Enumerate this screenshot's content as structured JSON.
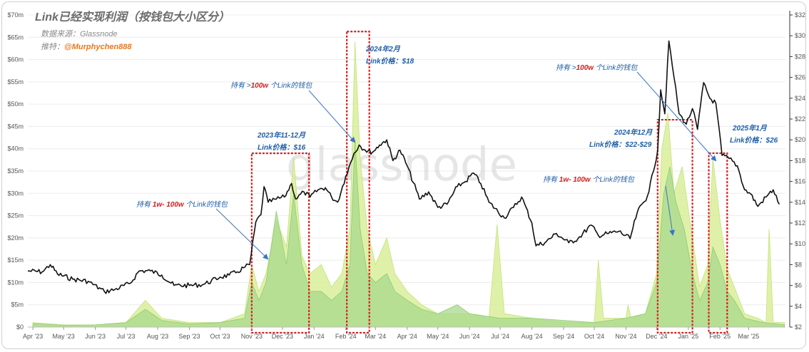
{
  "header": {
    "title": "Link已经实现利润（按钱包大小区分）",
    "source": "数据来源：Glassnode",
    "author_prefix": "推特：",
    "author_handle": "@Murphychen888"
  },
  "watermark": "glassnode",
  "annotations": {
    "a_1w_100w_left": {
      "p1": "持有 ",
      "b": "1w- 100w",
      "p2": " 个Link的钱包"
    },
    "a_100w_left": {
      "p1": "持有 >",
      "b": "100w",
      "p2": " 个Link的钱包"
    },
    "a_2023": {
      "date": "2023年11-12月",
      "price": "Link价格：$16"
    },
    "a_2024feb": {
      "date": "2024年2月",
      "price": "Link价格：$18"
    },
    "a_100w_right": {
      "p1": "持有 >",
      "b": "100w",
      "p2": " 个Link的钱包"
    },
    "a_2024dec": {
      "date": "2024年12月",
      "price": "Link价格：$22-$29"
    },
    "a_1w_100w_right": {
      "p1": "持有 ",
      "b": "1w- 100w",
      "p2": " 个Link的钱包"
    },
    "a_2025jan": {
      "date": "2025年1月",
      "price": "Link价格：$26"
    }
  },
  "colors": {
    "price_line": "#111111",
    "profit_1w_100w": "#a8d88e",
    "profit_100w": "#d9ef9a",
    "highlight_box": "#d42020",
    "annotation": "#1f5fa8"
  },
  "chart_data": {
    "type": "area",
    "x_ticks": [
      "Apr '23",
      "May '23",
      "Jun '23",
      "Jul '23",
      "Aug '23",
      "Sep '23",
      "Oct '23",
      "Nov '23",
      "Dec '23",
      "Jan '24",
      "Feb '24",
      "Mar '24",
      "Apr '24",
      "May '24",
      "Jun '24",
      "Jul '24",
      "Aug '24",
      "Sep '24",
      "Oct '24",
      "Nov '24",
      "Dec '24",
      "Jan '25",
      "Feb '25",
      "Mar '25"
    ],
    "x_range": [
      "2023-03-27",
      "2025-04-06"
    ],
    "y_left": {
      "label": "",
      "ticks": [
        "$0",
        "$5m",
        "$10m",
        "$15m",
        "$20m",
        "$25m",
        "$30m",
        "$35m",
        "$40m",
        "$45m",
        "$50m",
        "$55m",
        "$60m",
        "$65m",
        "$70m"
      ],
      "range": [
        0,
        70
      ]
    },
    "y_right": {
      "label": "",
      "ticks": [
        "$2",
        "$4",
        "$6",
        "$8",
        "$10",
        "$12",
        "$14",
        "$16",
        "$18",
        "$20",
        "$22",
        "$24",
        "$26",
        "$28",
        "$30",
        "$32"
      ],
      "range": [
        2,
        32
      ]
    },
    "series": [
      {
        "name": "持有 >100w 个Link的钱包",
        "type": "area",
        "axis": "left",
        "points": [
          [
            "2023-04-01",
            1
          ],
          [
            "2023-05-01",
            0.5
          ],
          [
            "2023-06-01",
            0.5
          ],
          [
            "2023-07-01",
            1
          ],
          [
            "2023-07-20",
            6
          ],
          [
            "2023-08-05",
            2
          ],
          [
            "2023-09-01",
            1
          ],
          [
            "2023-10-01",
            1
          ],
          [
            "2023-10-25",
            3
          ],
          [
            "2023-11-01",
            14
          ],
          [
            "2023-11-08",
            8
          ],
          [
            "2023-11-15",
            12
          ],
          [
            "2023-11-25",
            24
          ],
          [
            "2023-12-05",
            18
          ],
          [
            "2023-12-12",
            38
          ],
          [
            "2023-12-20",
            16
          ],
          [
            "2023-12-28",
            12
          ],
          [
            "2024-01-08",
            14
          ],
          [
            "2024-01-18",
            9
          ],
          [
            "2024-01-28",
            12
          ],
          [
            "2024-02-05",
            22
          ],
          [
            "2024-02-10",
            64
          ],
          [
            "2024-02-15",
            38
          ],
          [
            "2024-02-22",
            22
          ],
          [
            "2024-03-01",
            14
          ],
          [
            "2024-03-12",
            20
          ],
          [
            "2024-03-20",
            12
          ],
          [
            "2024-04-01",
            8
          ],
          [
            "2024-04-15",
            5
          ],
          [
            "2024-05-01",
            3
          ],
          [
            "2024-06-01",
            3
          ],
          [
            "2024-06-20",
            2
          ],
          [
            "2024-06-28",
            23
          ],
          [
            "2024-07-05",
            3
          ],
          [
            "2024-08-01",
            2
          ],
          [
            "2024-09-01",
            1
          ],
          [
            "2024-10-01",
            1
          ],
          [
            "2024-10-05",
            15
          ],
          [
            "2024-10-10",
            2
          ],
          [
            "2024-11-01",
            2
          ],
          [
            "2024-11-03",
            5
          ],
          [
            "2024-11-06",
            2
          ],
          [
            "2024-11-20",
            3
          ],
          [
            "2024-12-01",
            12
          ],
          [
            "2024-12-06",
            40
          ],
          [
            "2024-12-12",
            48
          ],
          [
            "2024-12-18",
            30
          ],
          [
            "2024-12-26",
            36
          ],
          [
            "2025-01-05",
            20
          ],
          [
            "2025-01-12",
            9
          ],
          [
            "2025-01-20",
            14
          ],
          [
            "2025-01-25",
            38
          ],
          [
            "2025-02-01",
            24
          ],
          [
            "2025-02-08",
            13
          ],
          [
            "2025-02-15",
            9
          ],
          [
            "2025-02-25",
            3
          ],
          [
            "2025-03-10",
            2
          ],
          [
            "2025-03-18",
            1
          ],
          [
            "2025-03-21",
            22
          ],
          [
            "2025-03-25",
            1
          ],
          [
            "2025-04-05",
            1
          ]
        ]
      },
      {
        "name": "持有 1w- 100w 个Link的钱包",
        "type": "area",
        "axis": "left",
        "points": [
          [
            "2023-04-01",
            0.8
          ],
          [
            "2023-05-01",
            0.4
          ],
          [
            "2023-06-01",
            0.5
          ],
          [
            "2023-07-01",
            1
          ],
          [
            "2023-07-20",
            4
          ],
          [
            "2023-08-05",
            1.5
          ],
          [
            "2023-09-01",
            0.7
          ],
          [
            "2023-10-01",
            1
          ],
          [
            "2023-10-25",
            2
          ],
          [
            "2023-11-01",
            10
          ],
          [
            "2023-11-08",
            6
          ],
          [
            "2023-11-15",
            10
          ],
          [
            "2023-11-25",
            26
          ],
          [
            "2023-12-05",
            14
          ],
          [
            "2023-12-12",
            30
          ],
          [
            "2023-12-20",
            14
          ],
          [
            "2023-12-28",
            8
          ],
          [
            "2024-01-08",
            8
          ],
          [
            "2024-01-18",
            6
          ],
          [
            "2024-01-28",
            8
          ],
          [
            "2024-02-05",
            14
          ],
          [
            "2024-02-10",
            42
          ],
          [
            "2024-02-15",
            22
          ],
          [
            "2024-02-22",
            12
          ],
          [
            "2024-03-01",
            10
          ],
          [
            "2024-03-12",
            12
          ],
          [
            "2024-03-20",
            8
          ],
          [
            "2024-04-01",
            6
          ],
          [
            "2024-04-15",
            4
          ],
          [
            "2024-05-01",
            3
          ],
          [
            "2024-05-20",
            5
          ],
          [
            "2024-06-01",
            3
          ],
          [
            "2024-07-01",
            2
          ],
          [
            "2024-08-01",
            2
          ],
          [
            "2024-09-01",
            1.5
          ],
          [
            "2024-10-01",
            1
          ],
          [
            "2024-11-01",
            2
          ],
          [
            "2024-11-20",
            3
          ],
          [
            "2024-12-01",
            10
          ],
          [
            "2024-12-08",
            30
          ],
          [
            "2024-12-14",
            36
          ],
          [
            "2024-12-20",
            28
          ],
          [
            "2024-12-28",
            22
          ],
          [
            "2025-01-05",
            12
          ],
          [
            "2025-01-12",
            6
          ],
          [
            "2025-01-20",
            10
          ],
          [
            "2025-01-25",
            18
          ],
          [
            "2025-02-01",
            14
          ],
          [
            "2025-02-08",
            8
          ],
          [
            "2025-02-15",
            6
          ],
          [
            "2025-02-25",
            2
          ],
          [
            "2025-03-15",
            1
          ],
          [
            "2025-04-05",
            0.5
          ]
        ]
      },
      {
        "name": "Link价格",
        "type": "line",
        "axis": "right",
        "points": [
          [
            "2023-03-27",
            7.4
          ],
          [
            "2023-04-10",
            7.3
          ],
          [
            "2023-04-18",
            8.0
          ],
          [
            "2023-04-25",
            7.1
          ],
          [
            "2023-05-10",
            6.6
          ],
          [
            "2023-05-25",
            6.4
          ],
          [
            "2023-06-10",
            5.4
          ],
          [
            "2023-06-20",
            5.6
          ],
          [
            "2023-07-05",
            6.2
          ],
          [
            "2023-07-14",
            7.4
          ],
          [
            "2023-07-25",
            7.4
          ],
          [
            "2023-08-05",
            7.0
          ],
          [
            "2023-08-17",
            6.0
          ],
          [
            "2023-09-01",
            6.0
          ],
          [
            "2023-09-15",
            6.1
          ],
          [
            "2023-10-01",
            6.8
          ],
          [
            "2023-10-10",
            7.0
          ],
          [
            "2023-10-18",
            7.3
          ],
          [
            "2023-10-24",
            7.7
          ],
          [
            "2023-10-30",
            8.0
          ],
          [
            "2023-11-05",
            12.1
          ],
          [
            "2023-11-10",
            12.8
          ],
          [
            "2023-11-13",
            15.5
          ],
          [
            "2023-11-17",
            14.0
          ],
          [
            "2023-11-25",
            14.3
          ],
          [
            "2023-12-03",
            14.5
          ],
          [
            "2023-12-10",
            15.8
          ],
          [
            "2023-12-14",
            14.3
          ],
          [
            "2023-12-22",
            15.0
          ],
          [
            "2023-12-28",
            14.5
          ],
          [
            "2024-01-05",
            15.2
          ],
          [
            "2024-01-12",
            15.4
          ],
          [
            "2024-01-18",
            14.5
          ],
          [
            "2024-01-24",
            14.0
          ],
          [
            "2024-02-01",
            16.5
          ],
          [
            "2024-02-09",
            18.7
          ],
          [
            "2024-02-14",
            19.5
          ],
          [
            "2024-02-20",
            19.0
          ],
          [
            "2024-02-27",
            18.8
          ],
          [
            "2024-03-05",
            19.5
          ],
          [
            "2024-03-12",
            20.0
          ],
          [
            "2024-03-18",
            18.0
          ],
          [
            "2024-03-25",
            19.0
          ],
          [
            "2024-04-01",
            17.5
          ],
          [
            "2024-04-13",
            14.3
          ],
          [
            "2024-04-22",
            15.0
          ],
          [
            "2024-05-01",
            13.5
          ],
          [
            "2024-05-10",
            13.8
          ],
          [
            "2024-05-20",
            15.5
          ],
          [
            "2024-05-28",
            16.0
          ],
          [
            "2024-06-05",
            16.8
          ],
          [
            "2024-06-12",
            15.8
          ],
          [
            "2024-06-20",
            14.0
          ],
          [
            "2024-07-05",
            12.5
          ],
          [
            "2024-07-14",
            13.5
          ],
          [
            "2024-07-22",
            14.5
          ],
          [
            "2024-08-01",
            12.0
          ],
          [
            "2024-08-05",
            9.8
          ],
          [
            "2024-08-15",
            10.2
          ],
          [
            "2024-08-25",
            11.0
          ],
          [
            "2024-09-06",
            10.1
          ],
          [
            "2024-09-15",
            10.5
          ],
          [
            "2024-09-28",
            11.8
          ],
          [
            "2024-10-05",
            10.8
          ],
          [
            "2024-10-15",
            11.0
          ],
          [
            "2024-10-25",
            11.2
          ],
          [
            "2024-11-05",
            10.5
          ],
          [
            "2024-11-12",
            13.0
          ],
          [
            "2024-11-22",
            14.6
          ],
          [
            "2024-11-28",
            17.0
          ],
          [
            "2024-12-02",
            19.0
          ],
          [
            "2024-12-05",
            24.8
          ],
          [
            "2024-12-09",
            22.5
          ],
          [
            "2024-12-13",
            29.5
          ],
          [
            "2024-12-18",
            26.0
          ],
          [
            "2024-12-23",
            22.5
          ],
          [
            "2024-12-30",
            21.5
          ],
          [
            "2025-01-05",
            23.0
          ],
          [
            "2025-01-10",
            21.0
          ],
          [
            "2025-01-16",
            25.5
          ],
          [
            "2025-01-22",
            24.0
          ],
          [
            "2025-01-28",
            23.5
          ],
          [
            "2025-02-03",
            18.5
          ],
          [
            "2025-02-10",
            18.2
          ],
          [
            "2025-02-18",
            17.5
          ],
          [
            "2025-02-25",
            15.2
          ],
          [
            "2025-03-03",
            14.8
          ],
          [
            "2025-03-10",
            13.6
          ],
          [
            "2025-03-18",
            14.5
          ],
          [
            "2025-03-25",
            15.2
          ],
          [
            "2025-03-31",
            13.8
          ]
        ]
      }
    ],
    "highlight_ranges": [
      [
        "2023-11-01",
        "2023-12-27"
      ],
      [
        "2024-02-02",
        "2024-02-24"
      ],
      [
        "2024-12-02",
        "2025-01-05"
      ],
      [
        "2025-01-21",
        "2025-02-08"
      ]
    ],
    "grid": true,
    "legend": "none"
  }
}
